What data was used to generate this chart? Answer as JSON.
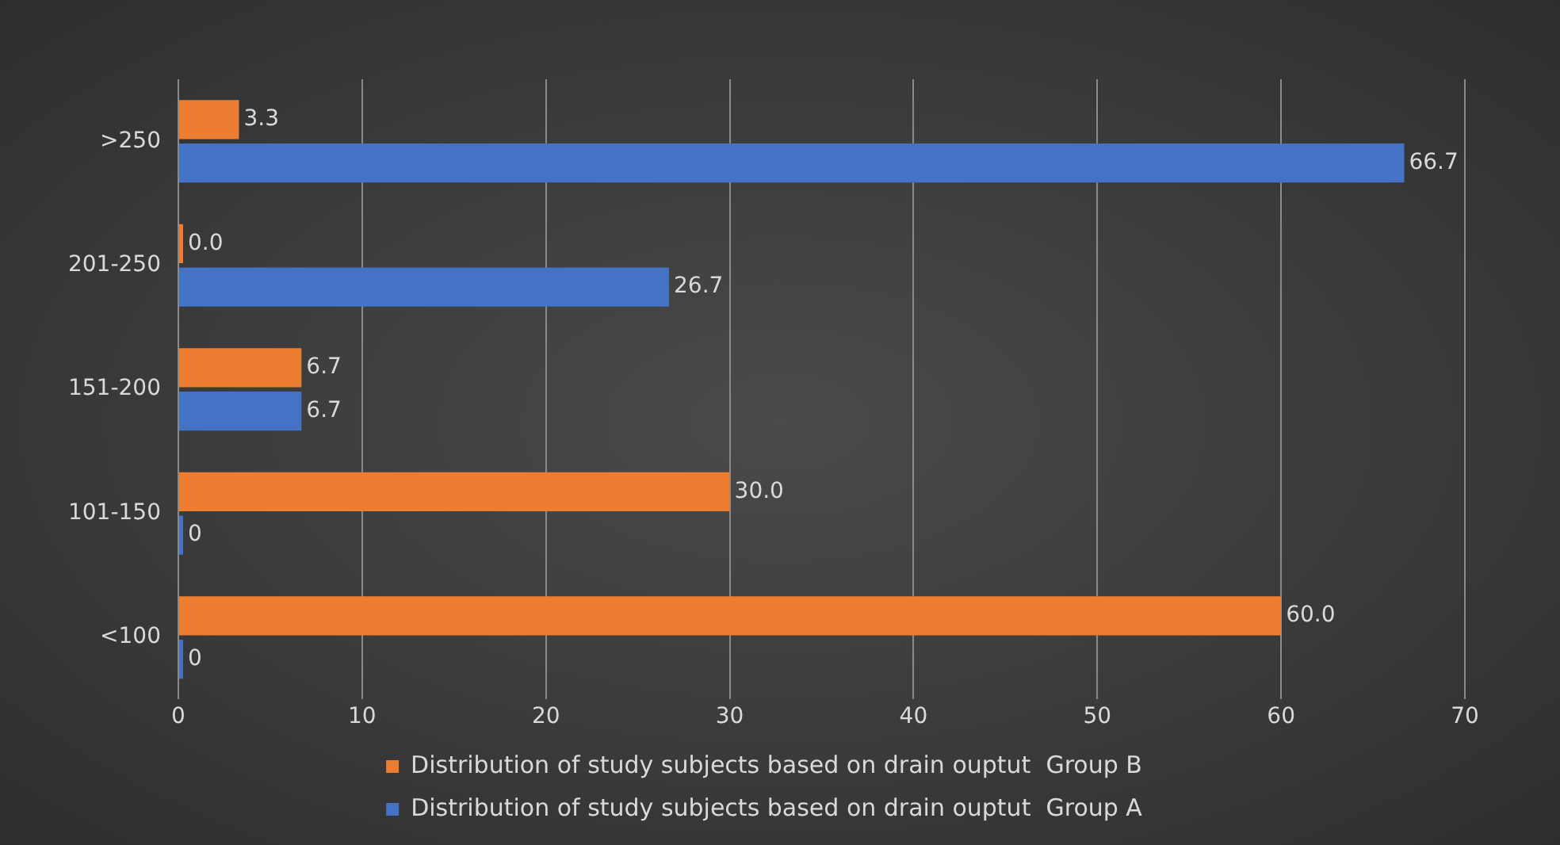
{
  "chart_data": {
    "type": "bar",
    "orientation": "horizontal",
    "categories": [
      ">250",
      "201-250",
      "151-200",
      "101-150",
      "<100"
    ],
    "series": [
      {
        "name": "Distribution of study subjects based on drain ouptut  Group B",
        "color": "#ed7d31",
        "values": [
          3.3,
          0.0,
          6.7,
          30.0,
          60.0
        ],
        "value_labels": [
          "3.3",
          "0.0",
          "6.7",
          "30.0",
          "60.0"
        ]
      },
      {
        "name": "Distribution of study subjects based on drain ouptut  Group A",
        "color": "#4472c4",
        "values": [
          66.7,
          26.7,
          6.7,
          0,
          0
        ],
        "value_labels": [
          "66.7",
          "26.7",
          "6.7",
          "0",
          "0"
        ]
      }
    ],
    "xlim": [
      0,
      70
    ],
    "xticks": [
      0,
      10,
      20,
      30,
      40,
      50,
      60,
      70
    ],
    "grid": "x",
    "legend": "bottom"
  }
}
